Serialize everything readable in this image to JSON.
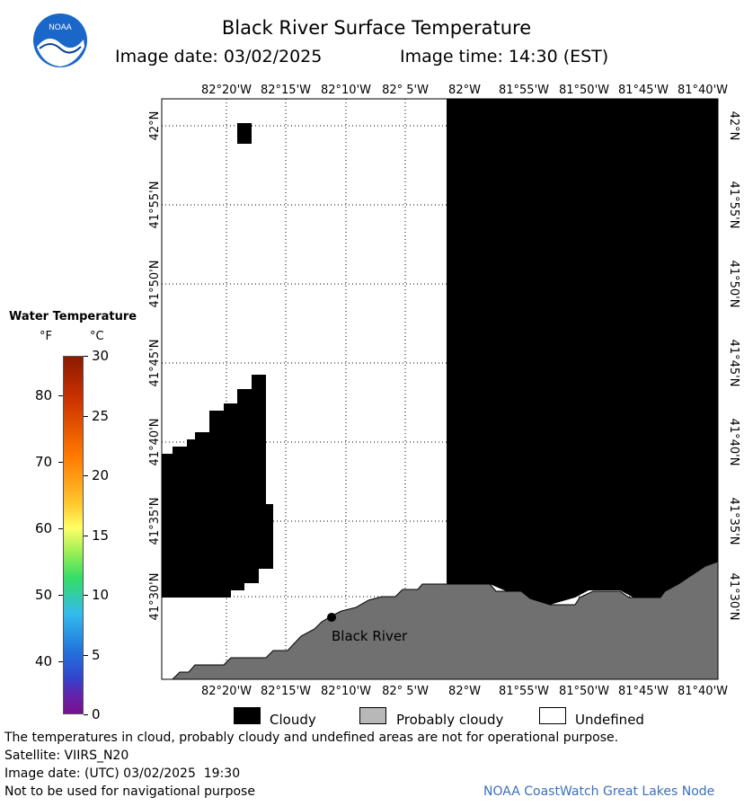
{
  "header": {
    "title": "Black River Surface Temperature",
    "image_date": "Image date: 03/02/2025",
    "image_time": "Image time: 14:30 (EST)",
    "logo_text": "NOAA"
  },
  "map": {
    "lon_labels": [
      "82°20'W",
      "82°15'W",
      "82°10'W",
      "82° 5'W",
      "82°W",
      "81°55'W",
      "81°50'W",
      "81°45'W",
      "81°40'W"
    ],
    "lat_labels": [
      "42°N",
      "41°55'N",
      "41°50'N",
      "41°45'N",
      "41°40'N",
      "41°35'N",
      "41°30'N"
    ],
    "station_label": "Black River"
  },
  "colorbar": {
    "title": "Water Temperature",
    "unit_f": "°F",
    "unit_c": "°C",
    "f_ticks": [
      "80",
      "70",
      "60",
      "50",
      "40"
    ],
    "c_ticks": [
      "30",
      "25",
      "20",
      "15",
      "10",
      "5",
      "0"
    ]
  },
  "legend": {
    "cloudy": "Cloudy",
    "probably_cloudy": "Probably cloudy",
    "undefined": "Undefined",
    "cloudy_color": "#000000",
    "probably_cloudy_color": "#b8b8b8",
    "undefined_color": "#ffffff",
    "land_color": "#707070"
  },
  "footer": {
    "disclaimer": "The temperatures in cloud, probably cloudy and undefined areas are not for operational purpose.",
    "satellite": "Satellite: VIIRS_N20",
    "utc_date": "Image date: (UTC) 03/02/2025  19:30",
    "nav_warning": "Not to be used for navigational purpose",
    "credit": "NOAA CoastWatch Great Lakes Node"
  }
}
